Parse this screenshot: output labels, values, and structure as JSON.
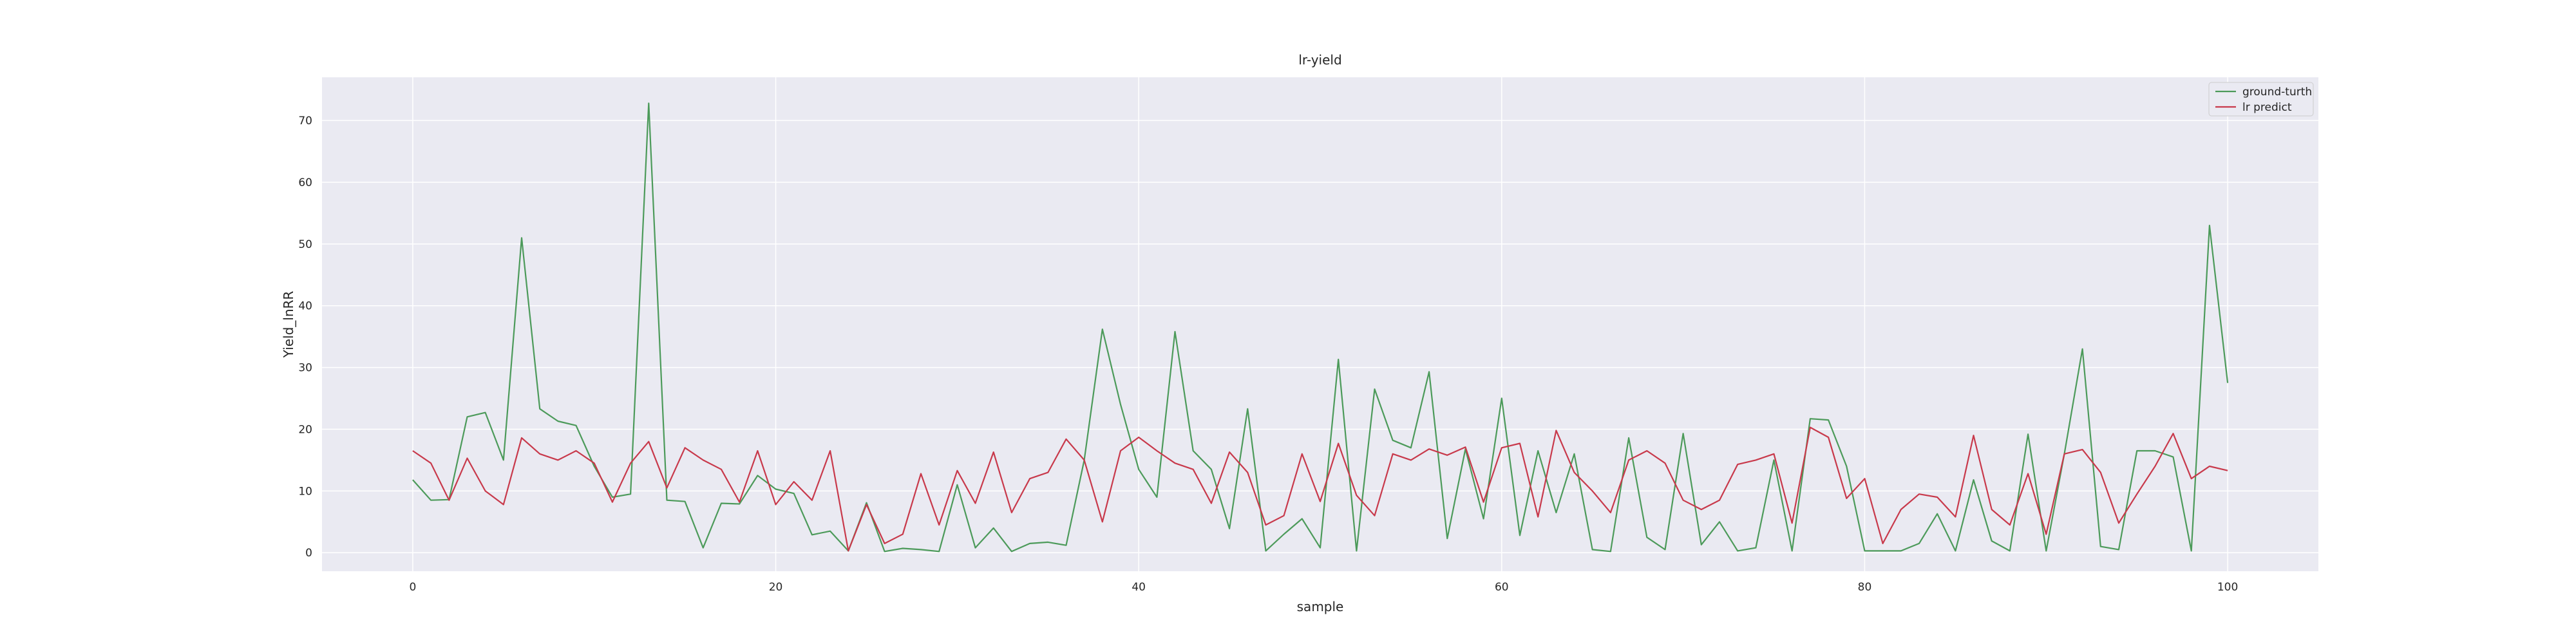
{
  "chart_data": {
    "type": "line",
    "title": "lr-yield",
    "xlabel": "sample",
    "ylabel": "Yield_lnRR",
    "xlim": [
      -5,
      105
    ],
    "ylim": [
      -3,
      77
    ],
    "xticks": [
      0,
      20,
      40,
      60,
      80,
      100
    ],
    "yticks": [
      0,
      10,
      20,
      30,
      40,
      50,
      60,
      70
    ],
    "grid": true,
    "legend_position": "top-right",
    "series": [
      {
        "name": "ground-turth",
        "color": "#4c9a5a",
        "values": [
          11.8,
          8.5,
          8.6,
          22.0,
          22.7,
          15.0,
          51.0,
          23.3,
          21.3,
          20.6,
          14.0,
          9.0,
          9.5,
          72.8,
          8.5,
          8.3,
          0.8,
          8.0,
          7.9,
          12.5,
          10.3,
          9.6,
          2.9,
          3.5,
          0.3,
          8.1,
          0.2,
          0.7,
          0.5,
          0.2,
          11.0,
          0.8,
          4.0,
          0.2,
          1.5,
          1.7,
          1.2,
          15.0,
          36.2,
          24.0,
          13.5,
          9.0,
          35.8,
          16.5,
          13.5,
          3.9,
          23.3,
          0.3,
          3.0,
          5.5,
          0.8,
          31.3,
          0.3,
          26.5,
          18.2,
          17.0,
          29.3,
          2.3,
          16.8,
          5.5,
          25.0,
          2.8,
          16.5,
          6.5,
          16.0,
          0.5,
          0.2,
          18.6,
          2.5,
          0.5,
          19.3,
          1.3,
          5.0,
          0.3,
          0.8,
          15.0,
          0.3,
          21.7,
          21.5,
          14.0,
          0.3,
          0.3,
          0.3,
          1.5,
          6.3,
          0.3,
          11.8,
          1.9,
          0.3,
          19.2,
          0.3,
          16.0,
          33.0,
          1.0,
          0.5,
          16.5,
          16.5,
          15.5,
          0.3,
          53.0,
          27.5
        ]
      },
      {
        "name": "lr predict",
        "color": "#c8394b",
        "values": [
          16.5,
          14.5,
          8.5,
          15.3,
          10.0,
          7.8,
          18.6,
          16.0,
          15.0,
          16.5,
          14.5,
          8.2,
          14.5,
          18.0,
          10.5,
          17.0,
          15.0,
          13.5,
          8.2,
          16.5,
          7.8,
          11.5,
          8.5,
          16.5,
          0.3,
          7.8,
          1.5,
          3.0,
          12.8,
          4.5,
          13.3,
          8.0,
          16.3,
          6.5,
          12.0,
          13.0,
          18.4,
          15.0,
          5.0,
          16.5,
          18.7,
          16.5,
          14.5,
          13.5,
          8.0,
          16.3,
          13.0,
          4.5,
          6.0,
          16.0,
          8.3,
          17.7,
          9.3,
          6.0,
          16.0,
          15.0,
          16.8,
          15.8,
          17.1,
          8.2,
          17.0,
          17.7,
          5.8,
          19.8,
          13.0,
          10.0,
          6.5,
          15.0,
          16.5,
          14.5,
          8.5,
          7.0,
          8.5,
          14.3,
          15.0,
          16.0,
          4.8,
          20.3,
          18.7,
          8.8,
          12.0,
          1.5,
          7.0,
          9.5,
          9.0,
          5.8,
          19.0,
          7.0,
          4.5,
          12.8,
          3.0,
          16.0,
          16.7,
          13.0,
          4.8,
          9.5,
          14.0,
          19.3,
          12.0,
          14.0,
          13.3
        ]
      }
    ]
  }
}
